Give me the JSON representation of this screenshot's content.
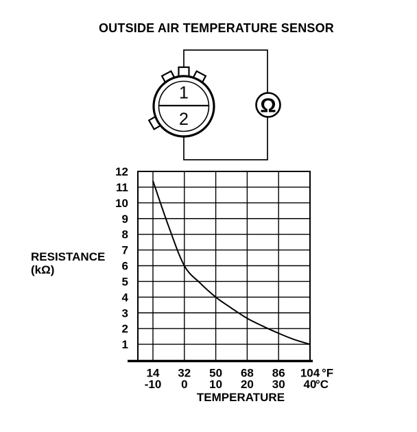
{
  "title": "OUTSIDE AIR TEMPERATURE SENSOR",
  "colors": {
    "ink": "#000000",
    "background": "#ffffff"
  },
  "circuit": {
    "description": "sensor connector face with two pins wired in a loop to an ohmmeter",
    "pin1": "1",
    "pin2": "2",
    "ohmmeter_symbol": "Ω"
  },
  "chart_data": {
    "type": "line",
    "title": "",
    "xlabel": "TEMPERATURE",
    "ylabel": "RESISTANCE",
    "ylabel_unit": "(kΩ)",
    "grid": true,
    "x_axis": {
      "tick_values_celsius": [
        -10,
        0,
        10,
        20,
        30,
        40
      ],
      "tick_labels_fahrenheit": [
        "14",
        "32",
        "50",
        "68",
        "86",
        "104"
      ],
      "tick_labels_celsius": [
        "-10",
        "0",
        "10",
        "20",
        "30",
        "40"
      ],
      "unit_fahrenheit": "°F",
      "unit_celsius": "°C",
      "range_celsius": [
        -10,
        40
      ]
    },
    "y_axis": {
      "tick_values": [
        12,
        11,
        10,
        9,
        8,
        7,
        6,
        5,
        4,
        3,
        2,
        1
      ],
      "tick_labels": [
        "12",
        "11",
        "10",
        "9",
        "8",
        "7",
        "6",
        "5",
        "4",
        "3",
        "2",
        "1"
      ],
      "range": [
        0,
        12
      ]
    },
    "series": [
      {
        "name": "sensor-resistance-curve",
        "x_celsius": [
          -10,
          -5,
          0,
          5,
          10,
          15,
          20,
          25,
          30,
          35,
          40
        ],
        "resistance_kohm": [
          11.4,
          8.5,
          6.0,
          4.9,
          4.0,
          3.3,
          2.65,
          2.15,
          1.7,
          1.3,
          1.0
        ]
      }
    ]
  }
}
